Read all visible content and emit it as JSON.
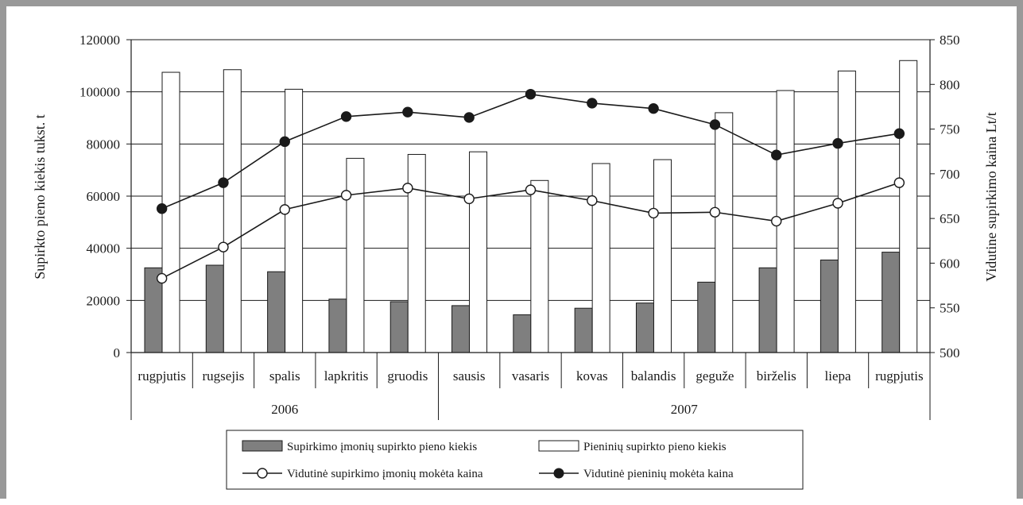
{
  "chart_data": {
    "type": "bar",
    "categories": [
      "rugpjutis",
      "rugsejis",
      "spalis",
      "lapkritis",
      "gruodis",
      "sausis",
      "vasaris",
      "kovas",
      "balandis",
      "geguže",
      "birželis",
      "liepa",
      "rugpjutis"
    ],
    "groups": [
      {
        "label": "2006",
        "start": 0,
        "end": 4
      },
      {
        "label": "2007",
        "start": 5,
        "end": 12
      }
    ],
    "ylabel": "Supirkto pieno kiekis tukst. t",
    "y2label": "Vidutine supirkimo kaina Lt/t",
    "ylim": [
      0,
      120000
    ],
    "yticks": [
      "0",
      "20000",
      "40000",
      "60000",
      "80000",
      "100000",
      "120000"
    ],
    "y2lim": [
      500,
      850
    ],
    "y2ticks": [
      "500",
      "550",
      "600",
      "650",
      "700",
      "750",
      "800",
      "850"
    ],
    "grid": true,
    "series": [
      {
        "name": "Supirkimo įmonių supirkto pieno kiekis",
        "kind": "bar",
        "axis": "left",
        "color": "#7f7f7f",
        "values": [
          32500,
          33500,
          31000,
          20500,
          19500,
          18000,
          14500,
          17000,
          19000,
          27000,
          32500,
          35500,
          38500
        ]
      },
      {
        "name": "Pieninių supirkto pieno kiekis",
        "kind": "bar",
        "axis": "left",
        "color": "#ffffff",
        "values": [
          107500,
          108500,
          101000,
          74500,
          76000,
          77000,
          66000,
          72500,
          74000,
          92000,
          100500,
          108000,
          112000
        ]
      },
      {
        "name": "Vidutinė supirkimo įmonių mokėta kaina",
        "kind": "line",
        "axis": "right",
        "marker": "open",
        "values": [
          583,
          618,
          660,
          676,
          684,
          672,
          682,
          670,
          656,
          657,
          647,
          667,
          690
        ]
      },
      {
        "name": "Vidutinė pieninių mokėta kaina",
        "kind": "line",
        "axis": "right",
        "marker": "filled",
        "values": [
          661,
          690,
          736,
          764,
          769,
          763,
          789,
          779,
          773,
          755,
          721,
          734,
          745
        ]
      }
    ],
    "legend_position": "bottom"
  }
}
